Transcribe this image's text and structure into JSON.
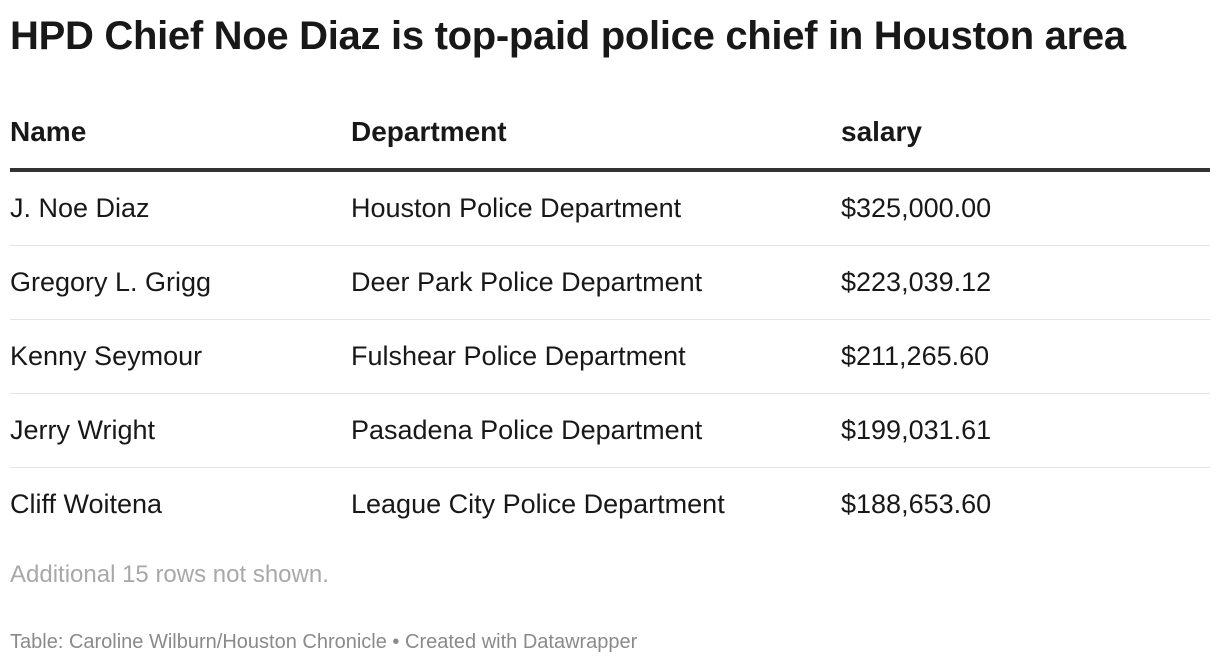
{
  "chart_data": {
    "type": "table",
    "title": "HPD Chief Noe Diaz is top-paid police chief in Houston area",
    "columns": [
      "Name",
      "Department",
      "salary"
    ],
    "rows": [
      [
        "J. Noe Diaz",
        "Houston Police Department",
        "$325,000.00"
      ],
      [
        "Gregory L. Grigg",
        "Deer Park Police Department",
        "$223,039.12"
      ],
      [
        "Kenny Seymour",
        "Fulshear Police Department",
        "$211,265.60"
      ],
      [
        "Jerry Wright",
        "Pasadena Police Department",
        "$199,031.61"
      ],
      [
        "Cliff Woitena",
        "League City Police Department",
        "$188,653.60"
      ]
    ],
    "notes": "Additional 15 rows not shown."
  },
  "footer": {
    "source_label": "Table:",
    "source": "Caroline Wilburn/Houston Chronicle",
    "separator": "•",
    "credit": "Created with Datawrapper"
  }
}
